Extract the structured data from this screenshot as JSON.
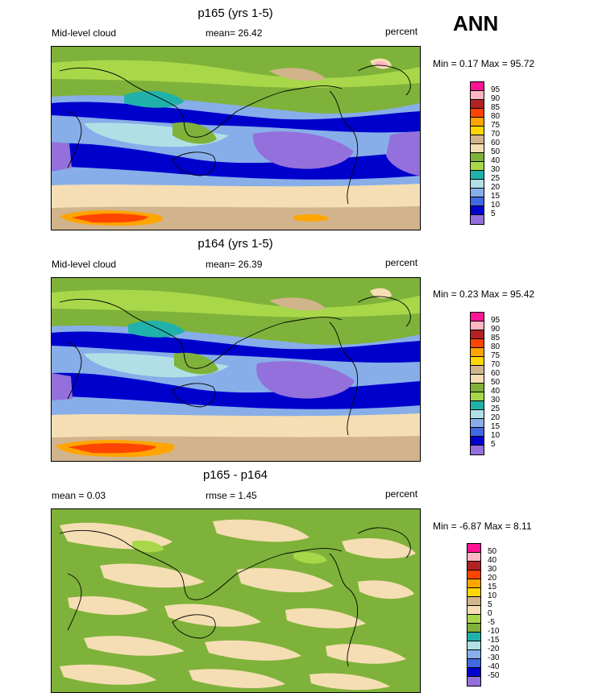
{
  "season": "ANN",
  "panels": [
    {
      "title": "p165 (yrs 1-5)",
      "left_label": "Mid-level cloud",
      "center_label": "mean=  26.42",
      "right_label": "percent",
      "minmax": "Min =   0.17 Max =  95.72"
    },
    {
      "title": "p164 (yrs 1-5)",
      "left_label": "Mid-level cloud",
      "center_label": "mean=  26.39",
      "right_label": "percent",
      "minmax": "Min =   0.23 Max =  95.42"
    },
    {
      "title": "p165 - p164",
      "left_label": "mean =   0.03",
      "center_label": "rmse =   1.45",
      "right_label": "percent",
      "minmax": "Min =  -6.87 Max =   8.11"
    }
  ],
  "colorbars": {
    "main": {
      "labels": [
        "95",
        "90",
        "85",
        "80",
        "75",
        "70",
        "60",
        "50",
        "40",
        "30",
        "25",
        "20",
        "15",
        "10",
        "5"
      ],
      "colors": [
        "#ff1493",
        "#ffb6c1",
        "#b22222",
        "#ff4500",
        "#ffa500",
        "#ffd700",
        "#d2b48c",
        "#f5deb3",
        "#7fb23a",
        "#a8d84a",
        "#20b2aa",
        "#b0e0e6",
        "#87aee8",
        "#4169e1",
        "#0000cd",
        "#9370db"
      ]
    },
    "diff": {
      "labels": [
        "50",
        "40",
        "30",
        "20",
        "15",
        "10",
        "5",
        "0",
        "-5",
        "-10",
        "-15",
        "-20",
        "-30",
        "-40",
        "-50"
      ],
      "colors": [
        "#ff1493",
        "#ffb6c1",
        "#b22222",
        "#ff4500",
        "#ffa500",
        "#ffd700",
        "#d2b48c",
        "#f5deb3",
        "#a8d84a",
        "#7fb23a",
        "#20b2aa",
        "#b0e0e6",
        "#87aee8",
        "#4169e1",
        "#0000cd",
        "#9370db"
      ]
    }
  }
}
